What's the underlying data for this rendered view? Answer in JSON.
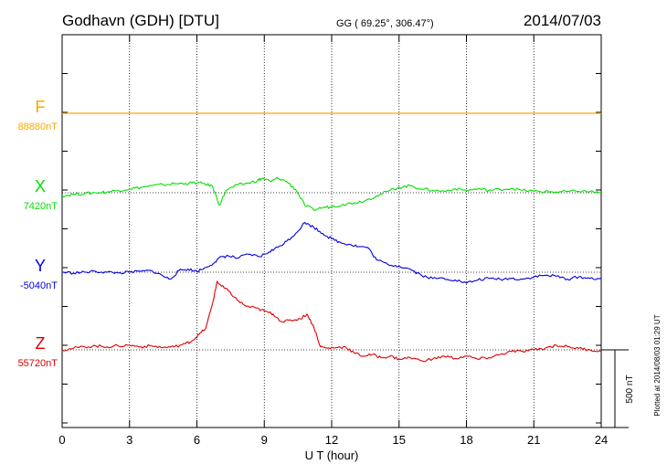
{
  "header": {
    "station": "Godhavn (GDH)  [DTU]",
    "coords": "GG ( 69.25°, 306.47°)",
    "date": "2014/07/03"
  },
  "plot_note": "Plotted at 2014/08/03 01:29 UT",
  "chart_data": {
    "type": "line",
    "xlabel": "U T (hour)",
    "xlim": [
      0,
      24
    ],
    "xticks": [
      0,
      3,
      6,
      9,
      12,
      15,
      18,
      21,
      24
    ],
    "scale_bar_label": "500 nT",
    "scale_bar_nT": 500,
    "grid": true,
    "series": [
      {
        "name": "F",
        "baseline_label": "88880nT",
        "color": "#ffa500",
        "t": [
          0,
          24
        ],
        "dev": [
          0,
          0
        ]
      },
      {
        "name": "X",
        "baseline_label": "7420nT",
        "color": "#00e000",
        "t": [
          0,
          0.5,
          1,
          1.5,
          2,
          2.5,
          3,
          3.5,
          4,
          4.5,
          5,
          5.5,
          5.9,
          6.3,
          6.7,
          7.0,
          7.3,
          7.8,
          8.3,
          8.7,
          8.9,
          9.3,
          9.6,
          10.0,
          10.4,
          10.8,
          11.2,
          11.6,
          12.0,
          12.5,
          13,
          13.5,
          14,
          14.5,
          15,
          15.5,
          16,
          16.5,
          17,
          17.5,
          18,
          18.5,
          19,
          19.5,
          20,
          20.5,
          21,
          21.5,
          22,
          22.5,
          23,
          23.5,
          24
        ],
        "dev": [
          -20,
          -10,
          -5,
          0,
          5,
          15,
          25,
          35,
          45,
          52,
          58,
          60,
          64,
          60,
          40,
          -80,
          15,
          50,
          62,
          78,
          93,
          72,
          95,
          72,
          20,
          -80,
          -110,
          -95,
          -90,
          -75,
          -65,
          -50,
          -20,
          10,
          35,
          45,
          25,
          15,
          10,
          25,
          15,
          25,
          15,
          22,
          28,
          15,
          10,
          8,
          5,
          8,
          10,
          8,
          0
        ]
      },
      {
        "name": "Y",
        "baseline_label": "-5040nT",
        "color": "#0000e0",
        "t": [
          0,
          0.5,
          1,
          1.5,
          2,
          2.5,
          3,
          3.5,
          4,
          4.5,
          4.8,
          5.2,
          5.6,
          6.0,
          6.4,
          6.8,
          7.1,
          7.4,
          7.8,
          8.3,
          8.8,
          9.2,
          9.6,
          10.0,
          10.4,
          10.8,
          11.2,
          11.6,
          12.0,
          12.4,
          12.8,
          13.2,
          13.6,
          14.0,
          14.5,
          15,
          15.5,
          16,
          16.5,
          17,
          17.5,
          18,
          18.5,
          19,
          19.5,
          20,
          20.5,
          21,
          21.5,
          22,
          22.5,
          23,
          23.5,
          24
        ],
        "dev": [
          0,
          -5,
          0,
          5,
          0,
          -5,
          0,
          5,
          10,
          -25,
          -45,
          10,
          20,
          5,
          30,
          65,
          100,
          105,
          90,
          115,
          100,
          130,
          160,
          200,
          250,
          320,
          290,
          250,
          215,
          190,
          180,
          165,
          160,
          80,
          50,
          40,
          20,
          -20,
          -40,
          -40,
          -50,
          -70,
          -50,
          -40,
          -45,
          -40,
          -45,
          -30,
          -20,
          -25,
          -45,
          -30,
          -40,
          -40
        ]
      },
      {
        "name": "Z",
        "baseline_label": "55720nT",
        "color": "#e00000",
        "t": [
          0,
          0.5,
          1,
          1.5,
          2,
          2.5,
          3,
          3.5,
          4,
          4.5,
          5,
          5.5,
          5.8,
          6.1,
          6.4,
          6.7,
          6.9,
          7.1,
          7.4,
          7.8,
          8.2,
          8.6,
          9.0,
          9.4,
          9.8,
          10.2,
          10.6,
          10.9,
          11.2,
          11.5,
          11.8,
          12.2,
          12.6,
          13.0,
          13.4,
          13.8,
          14.2,
          14.6,
          15,
          15.5,
          16,
          16.5,
          17,
          17.5,
          18,
          18.5,
          19,
          19.5,
          20,
          20.5,
          21,
          21.5,
          22,
          22.5,
          23,
          23.5,
          24
        ],
        "dev": [
          0,
          10,
          20,
          25,
          20,
          25,
          30,
          20,
          25,
          15,
          20,
          40,
          60,
          100,
          140,
          300,
          440,
          410,
          380,
          320,
          280,
          270,
          250,
          230,
          180,
          190,
          200,
          230,
          150,
          20,
          10,
          15,
          20,
          -20,
          -40,
          -30,
          -50,
          -40,
          -60,
          -50,
          -70,
          -60,
          -40,
          -55,
          -40,
          -60,
          -50,
          -30,
          -10,
          -10,
          0,
          10,
          30,
          20,
          10,
          0,
          -10
        ]
      }
    ]
  }
}
